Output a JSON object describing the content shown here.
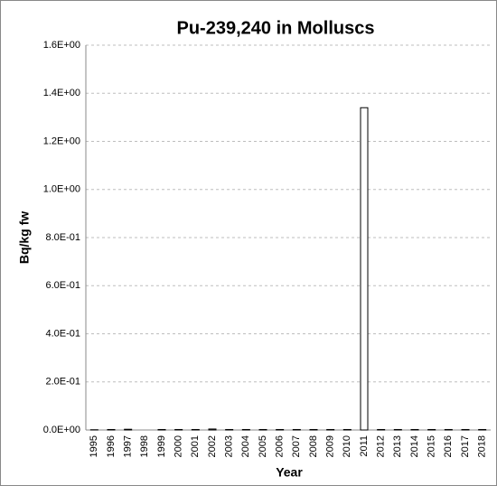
{
  "chart_data": {
    "type": "bar",
    "title": "Pu-239,240 in Molluscs",
    "x_label": "Year",
    "y_label": "Bq/kg fw",
    "categories": [
      "1995",
      "1996",
      "1997",
      "1998",
      "1999",
      "2000",
      "2001",
      "2002",
      "2003",
      "2004",
      "2005",
      "2006",
      "2007",
      "2008",
      "2009",
      "2010",
      "2011",
      "2012",
      "2013",
      "2014",
      "2015",
      "2016",
      "2017",
      "2018"
    ],
    "values": [
      0.001,
      0.002,
      0.003,
      null,
      0.002,
      0.002,
      0.002,
      0.004,
      0.002,
      0.002,
      0.002,
      0.002,
      0.002,
      0.002,
      0.002,
      0.002,
      1.34,
      0.002,
      0.002,
      0.002,
      0.002,
      0.002,
      0.002,
      0.002
    ],
    "color": "#ffffff",
    "edge_color": "#000000",
    "ylim": [
      0,
      1.6
    ],
    "yticks": [
      {
        "value": 0,
        "label": "0.0E+00"
      },
      {
        "value": 0.2,
        "label": "2.0E-01"
      },
      {
        "value": 0.4,
        "label": "4.0E-01"
      },
      {
        "value": 0.6,
        "label": "6.0E-01"
      },
      {
        "value": 0.8,
        "label": "8.0E-01"
      },
      {
        "value": 1.0,
        "label": "1.0E+00"
      },
      {
        "value": 1.2,
        "label": "1.2E+00"
      },
      {
        "value": 1.4,
        "label": "1.4E+00"
      },
      {
        "value": 1.6,
        "label": "1.6E+00"
      }
    ],
    "grid": true
  }
}
